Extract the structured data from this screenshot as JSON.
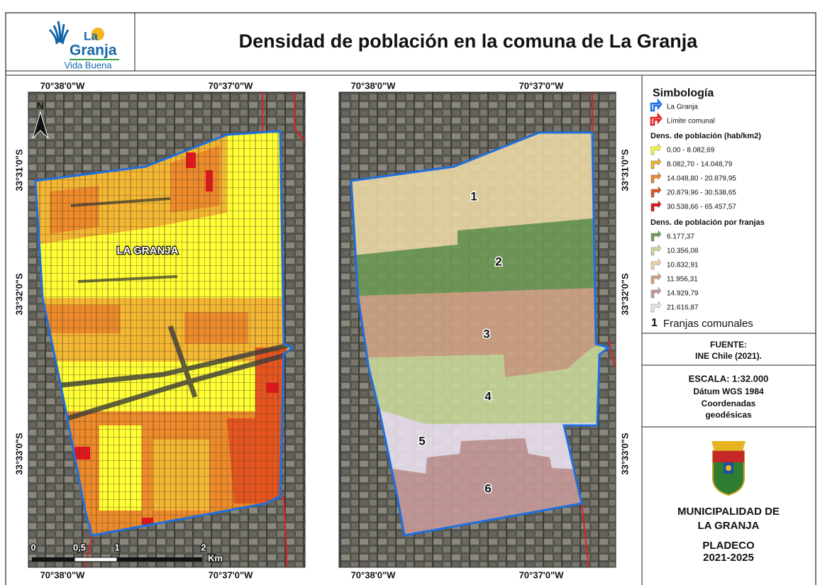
{
  "logo": {
    "line1": "La",
    "line2": "Granja",
    "tagline": "Vida Buena"
  },
  "title": "Densidad de población en la comuna de La Granja",
  "maps": [
    {
      "lon_labels_top": [
        "70°38'0\"W",
        "70°37'0\"W"
      ],
      "lon_labels_bottom": [
        "70°38'0\"W",
        "70°37'0\"W"
      ],
      "lat_labels": [
        "33°31'0\"S",
        "33°32'0\"S",
        "33°33'0\"S"
      ],
      "north": "N",
      "place_label": "LA GRANJA",
      "scale_labels": [
        "0",
        "0,5",
        "1",
        "2"
      ],
      "scale_unit": "Km"
    },
    {
      "lon_labels_top": [
        "70°38'0\"W",
        "70°37'0\"W"
      ],
      "lon_labels_bottom": [
        "70°38'0\"W",
        "70°37'0\"W"
      ],
      "lat_labels": [
        "33°31'0\"S",
        "33°32'0\"S",
        "33°33'0\"S"
      ],
      "zone_labels": [
        "1",
        "2",
        "3",
        "4",
        "5",
        "6"
      ]
    }
  ],
  "legend": {
    "title": "Simbología",
    "items": [
      {
        "label": "La Granja",
        "color": "#1f6fe0"
      },
      {
        "label": "Límite comunal",
        "color": "#e02020"
      }
    ],
    "density_title": "Dens. de población (hab/km2)",
    "density_classes": [
      {
        "label": "0,00 - 8.082,69",
        "color": "#ffff33"
      },
      {
        "label": "8.082,70 - 14.048,79",
        "color": "#f5b731"
      },
      {
        "label": "14.048,80 - 20.879,95",
        "color": "#ee8a2a"
      },
      {
        "label": "20.879,96 - 30.538,65",
        "color": "#e8541e"
      },
      {
        "label": "30.538,66 - 65.457,57",
        "color": "#e3141b"
      }
    ],
    "strip_title": "Dens. de población por franjas",
    "strip_classes": [
      {
        "label": "6.177,37",
        "color": "#6e9a57"
      },
      {
        "label": "10.356,08",
        "color": "#c8d89a"
      },
      {
        "label": "10.832,91",
        "color": "#ead7a4"
      },
      {
        "label": "11.956,31",
        "color": "#cfa283"
      },
      {
        "label": "14.929,79",
        "color": "#c69a9a"
      },
      {
        "label": "21.616,87",
        "color": "#ece2f0"
      }
    ],
    "strip_marker": "1",
    "strip_label": "Franjas comunales"
  },
  "source": {
    "heading": "FUENTE:",
    "text": "INE Chile (2021)."
  },
  "scale": {
    "lines": [
      "ESCALA: 1:32.000",
      "Dátum WGS 1984",
      "Coordenadas",
      "geodésicas"
    ]
  },
  "footer": {
    "lines": [
      "MUNICIPALIDAD DE",
      "LA GRANJA",
      "PLADECO",
      "2021-2025"
    ]
  }
}
